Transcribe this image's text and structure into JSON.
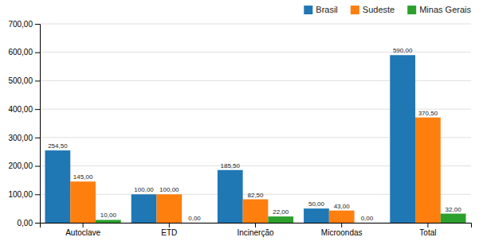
{
  "chart_data": {
    "type": "bar",
    "categories": [
      "Autoclave",
      "ETD",
      "Incinerção",
      "Microondas",
      "Total"
    ],
    "series": [
      {
        "name": "Brasil",
        "values": [
          254.5,
          100.0,
          185.5,
          50.0,
          590.0
        ],
        "value_labels": [
          "254,50",
          "100,00",
          "185,50",
          "50,00",
          "590,00"
        ]
      },
      {
        "name": "Sudeste",
        "values": [
          145.0,
          100.0,
          82.5,
          43.0,
          370.5
        ],
        "value_labels": [
          "145,00",
          "100,00",
          "82,50",
          "43,00",
          "370,50"
        ]
      },
      {
        "name": "Minas Gerais",
        "values": [
          10.0,
          0.0,
          22.0,
          0.0,
          32.0
        ],
        "value_labels": [
          "10,00",
          "0,00",
          "22,00",
          "0,00",
          "32,00"
        ]
      }
    ],
    "ylim": [
      0,
      700
    ],
    "yticks": [
      {
        "value": 0,
        "label": "0,00"
      },
      {
        "value": 100,
        "label": "100,00"
      },
      {
        "value": 200,
        "label": "200,00"
      },
      {
        "value": 300,
        "label": "300,00"
      },
      {
        "value": 400,
        "label": "400,00"
      },
      {
        "value": 500,
        "label": "500,00"
      },
      {
        "value": 600,
        "label": "600,00"
      },
      {
        "value": 700,
        "label": "700,00"
      }
    ],
    "grid": true,
    "legend": "upper right",
    "data_labels": true
  }
}
